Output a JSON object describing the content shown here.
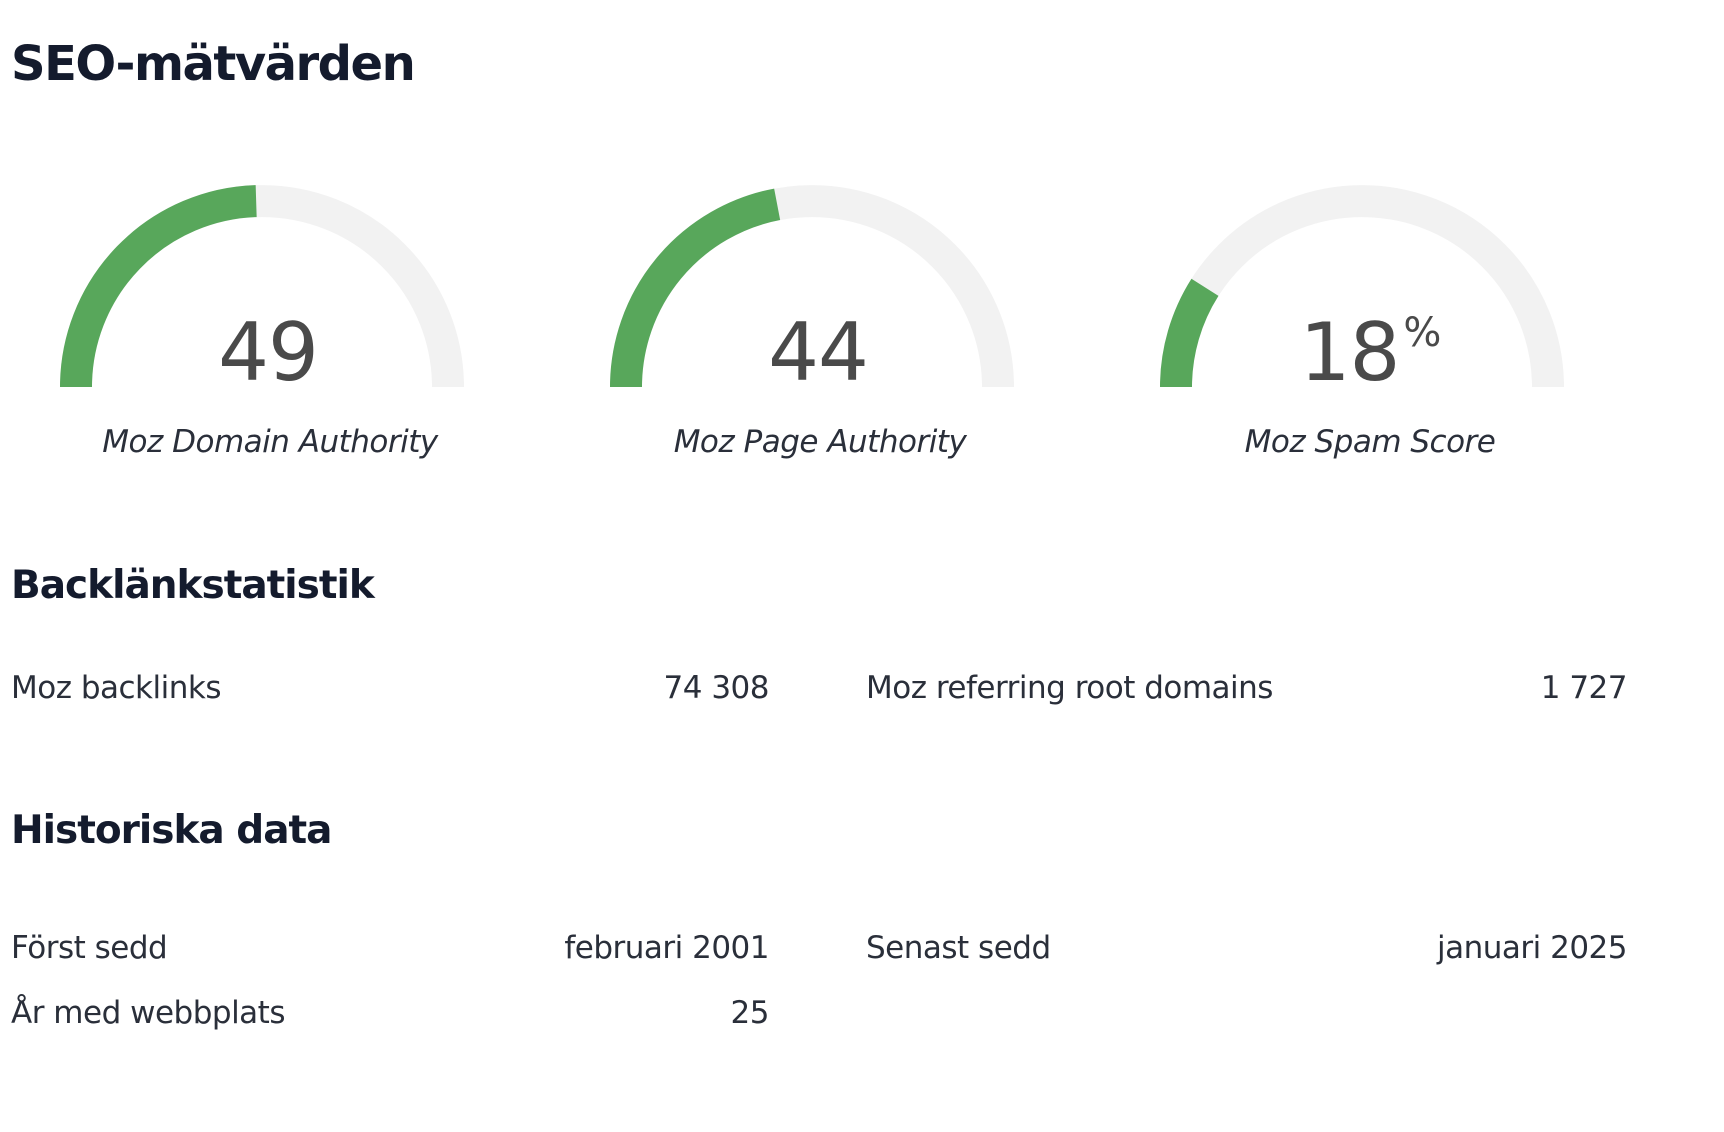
{
  "page": {
    "title": "SEO-mätvärden"
  },
  "colors": {
    "gauge_fill": "#58a75b",
    "gauge_track": "#f2f2f2"
  },
  "gauges": [
    {
      "value": "49",
      "suffix": "",
      "label": "Moz Domain Authority",
      "fraction": 0.49
    },
    {
      "value": "44",
      "suffix": "",
      "label": "Moz Page Authority",
      "fraction": 0.44
    },
    {
      "value": "18",
      "suffix": "%",
      "label": "Moz Spam Score",
      "fraction": 0.18
    }
  ],
  "backlinks": {
    "title": "Backlänkstatistik",
    "moz_backlinks": {
      "label": "Moz backlinks",
      "value": "74 308"
    },
    "referring_domains": {
      "label": "Moz referring root domains",
      "value": "1 727"
    }
  },
  "history": {
    "title": "Historiska data",
    "first_seen": {
      "label": "Först sedd",
      "value": "februari 2001"
    },
    "last_seen": {
      "label": "Senast sedd",
      "value": "januari 2025"
    },
    "years": {
      "label": "År med webbplats",
      "value": "25"
    }
  }
}
